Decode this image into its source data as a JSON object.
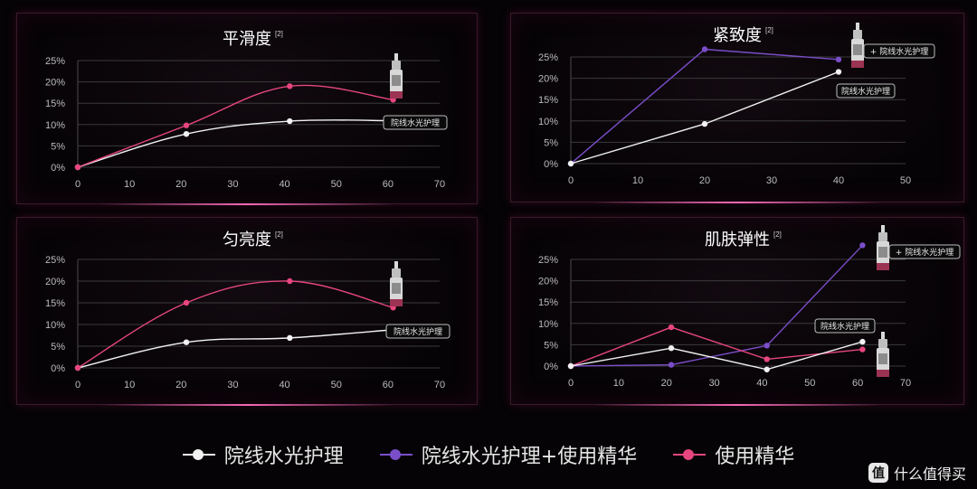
{
  "product_label": "院线水光护理",
  "product_label_plus": "+ 院线水光护理",
  "colors": {
    "white_series": "#f2f2f2",
    "purple_series": "#7b4ec9",
    "pink_series": "#e7467f"
  },
  "legend": [
    {
      "label": "院线水光护理",
      "color": "#f2f2f2"
    },
    {
      "label": "院线水光护理+使用精华",
      "color": "#7b4ec9"
    },
    {
      "label": "使用精华",
      "color": "#e7467f"
    }
  ],
  "watermark": {
    "icon": "值",
    "text": "什么值得买"
  },
  "chart_data": [
    {
      "type": "line",
      "title": "平滑度",
      "title_sup": "[2]",
      "xlim": [
        0,
        70
      ],
      "xticks": [
        0,
        10,
        20,
        30,
        40,
        50,
        60,
        70
      ],
      "ylim": [
        0,
        25
      ],
      "yticks": [
        "0%",
        "5%",
        "10%",
        "15%",
        "20%",
        "25%"
      ],
      "series": [
        {
          "name": "院线水光护理",
          "color": "#f2f2f2",
          "points": [
            [
              0,
              0
            ],
            [
              21,
              7.8
            ],
            [
              41,
              10.8
            ],
            [
              61,
              10.9
            ]
          ]
        },
        {
          "name": "使用精华",
          "color": "#e7467f",
          "points": [
            [
              0,
              0
            ],
            [
              21,
              9.8
            ],
            [
              41,
              19
            ],
            [
              61,
              15.8
            ]
          ]
        }
      ]
    },
    {
      "type": "line",
      "title": "紧致度",
      "title_sup": "[2]",
      "xlim": [
        0,
        50
      ],
      "xticks": [
        0,
        10,
        20,
        30,
        40,
        50
      ],
      "ylim": [
        0,
        25
      ],
      "yticks": [
        "0%",
        "5%",
        "10%",
        "15%",
        "20%",
        "25%"
      ],
      "series": [
        {
          "name": "院线水光护理+使用精华",
          "color": "#7b4ec9",
          "points": [
            [
              0,
              0
            ],
            [
              20,
              26.8
            ],
            [
              40,
              24.4
            ]
          ]
        },
        {
          "name": "院线水光护理",
          "color": "#f2f2f2",
          "points": [
            [
              0,
              0
            ],
            [
              20,
              9.3
            ],
            [
              40,
              21.5
            ]
          ]
        }
      ]
    },
    {
      "type": "line",
      "title": "匀亮度",
      "title_sup": "[2]",
      "xlim": [
        0,
        70
      ],
      "xticks": [
        0,
        10,
        20,
        30,
        40,
        50,
        60,
        70
      ],
      "ylim": [
        0,
        25
      ],
      "yticks": [
        "0%",
        "5%",
        "10%",
        "15%",
        "20%",
        "25%"
      ],
      "series": [
        {
          "name": "院线水光护理",
          "color": "#f2f2f2",
          "points": [
            [
              0,
              0
            ],
            [
              21,
              5.9
            ],
            [
              41,
              6.9
            ],
            [
              61,
              8.8
            ]
          ]
        },
        {
          "name": "使用精华",
          "color": "#e7467f",
          "points": [
            [
              0,
              0
            ],
            [
              21,
              15
            ],
            [
              41,
              20
            ],
            [
              61,
              13.9
            ]
          ]
        }
      ]
    },
    {
      "type": "line",
      "title": "肌肤弹性",
      "title_sup": "[2]",
      "xlim": [
        0,
        70
      ],
      "xticks": [
        0,
        10,
        20,
        30,
        40,
        50,
        60,
        70
      ],
      "ylim": [
        0,
        25
      ],
      "yticks": [
        "0%",
        "5%",
        "10%",
        "15%",
        "20%",
        "25%"
      ],
      "series": [
        {
          "name": "院线水光护理+使用精华",
          "color": "#7b4ec9",
          "points": [
            [
              0,
              0
            ],
            [
              21,
              0.3
            ],
            [
              41,
              4.8
            ],
            [
              61,
              28.3
            ]
          ]
        },
        {
          "name": "使用精华",
          "color": "#e7467f",
          "points": [
            [
              0,
              0
            ],
            [
              21,
              9.1
            ],
            [
              41,
              1.6
            ],
            [
              61,
              3.9
            ]
          ]
        },
        {
          "name": "院线水光护理",
          "color": "#f2f2f2",
          "points": [
            [
              0,
              0
            ],
            [
              21,
              4.2
            ],
            [
              41,
              -0.8
            ],
            [
              61,
              5.7
            ]
          ]
        }
      ]
    }
  ]
}
